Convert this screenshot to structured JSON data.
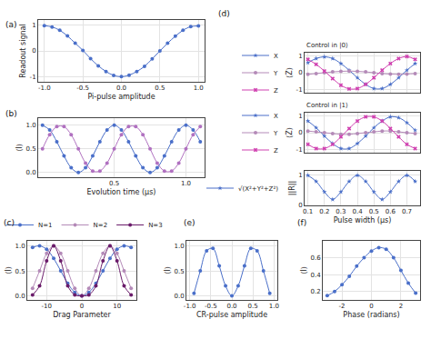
{
  "chart_data": [
    {
      "type": "line",
      "annotations": [
        "(a)"
      ],
      "xlabel": "Pi-pulse amplitude",
      "ylabel": "Readout signal",
      "grid": true,
      "marker": "circle",
      "x": [
        -1.0,
        -0.9,
        -0.8,
        -0.7,
        -0.6,
        -0.5,
        -0.4,
        -0.3,
        -0.2,
        -0.1,
        0.0,
        0.1,
        0.2,
        0.3,
        0.4,
        0.5,
        0.6,
        0.7,
        0.8,
        0.9,
        1.0
      ],
      "series": [
        {
          "color": "#4a6fc9",
          "values": [
            0.98,
            0.93,
            0.8,
            0.58,
            0.3,
            0.02,
            -0.3,
            -0.58,
            -0.8,
            -0.95,
            -1.0,
            -0.94,
            -0.8,
            -0.6,
            -0.31,
            0.0,
            0.3,
            0.57,
            0.8,
            0.94,
            0.97
          ]
        }
      ],
      "xlim": [
        -1.08,
        1.08
      ],
      "xticks": [
        {
          "value": -1,
          "label": "-1.0"
        },
        -0.5,
        {
          "value": 0,
          "label": "0.0"
        },
        0.5,
        {
          "value": 1,
          "label": "1.0"
        }
      ],
      "ylim": [
        -1.2,
        1.2
      ],
      "yticks": [
        -1,
        0,
        1
      ]
    },
    {
      "type": "line",
      "annotations": [
        "(b)"
      ],
      "xlabel": "Evolution time (μs)",
      "ylabel": "⟨I⟩",
      "grid": true,
      "marker": "circle",
      "x": [
        0.0,
        0.05,
        0.1,
        0.15,
        0.2,
        0.25,
        0.3,
        0.35,
        0.4,
        0.45,
        0.5,
        0.55,
        0.6,
        0.65,
        0.7,
        0.75,
        0.8,
        0.85,
        0.9,
        0.95,
        1.0,
        1.05,
        1.1
      ],
      "series": [
        {
          "color": "#4a6fc9",
          "values": [
            1.0,
            0.9,
            0.65,
            0.35,
            0.1,
            0.0,
            0.1,
            0.35,
            0.65,
            0.9,
            1.0,
            0.9,
            0.65,
            0.35,
            0.1,
            0.0,
            0.1,
            0.35,
            0.65,
            0.9,
            1.0,
            0.9,
            0.65
          ]
        },
        {
          "color": "#b070c0",
          "values": [
            0.5,
            0.8,
            0.97,
            0.97,
            0.8,
            0.5,
            0.2,
            0.03,
            0.03,
            0.2,
            0.5,
            0.8,
            0.97,
            0.97,
            0.8,
            0.5,
            0.2,
            0.03,
            0.03,
            0.2,
            0.5,
            0.8,
            0.97
          ]
        }
      ],
      "xlim": [
        -0.03,
        1.13
      ],
      "xticks": [
        0.5,
        {
          "value": 1,
          "label": "1.0"
        }
      ],
      "ylim": [
        -0.1,
        1.15
      ],
      "yticks": [
        {
          "value": 0,
          "label": "0.0"
        },
        0.5,
        {
          "value": 1,
          "label": "1.0"
        }
      ]
    },
    {
      "type": "line",
      "annotations": [
        "(c)"
      ],
      "xlabel": "Drag Parameter",
      "ylabel": "⟨I⟩",
      "grid": true,
      "marker": "circle",
      "legend": "top",
      "x": [
        -14,
        -12,
        -10,
        -8,
        -6,
        -4,
        -2,
        0,
        2,
        4,
        6,
        8,
        10,
        12,
        14
      ],
      "series": [
        {
          "name": "N=1",
          "color": "#4a6fc9",
          "values": [
            0.97,
            1.0,
            0.93,
            0.75,
            0.5,
            0.25,
            0.07,
            0.0,
            0.07,
            0.25,
            0.5,
            0.75,
            0.93,
            1.0,
            0.97
          ]
        },
        {
          "name": "N=2",
          "color": "#b48ab8",
          "values": [
            0.15,
            0.5,
            0.85,
            1.0,
            0.85,
            0.5,
            0.15,
            0.0,
            0.15,
            0.5,
            0.85,
            1.0,
            0.85,
            0.5,
            0.15
          ]
        },
        {
          "name": "N=3",
          "color": "#6a1b6a",
          "values": [
            0.02,
            0.2,
            0.7,
            1.0,
            0.7,
            0.2,
            0.02,
            0.0,
            0.02,
            0.2,
            0.7,
            1.0,
            0.7,
            0.2,
            0.02
          ]
        }
      ],
      "xlim": [
        -15.5,
        15.5
      ],
      "xticks": [
        -10,
        0,
        10
      ],
      "ylim": [
        -0.08,
        1.1
      ],
      "yticks": [
        {
          "value": 0,
          "label": "0.0"
        },
        0.5,
        {
          "value": 1,
          "label": "1.0"
        }
      ]
    },
    {
      "type": "line",
      "annotations": [
        "(d)"
      ],
      "title": "Control in |0⟩",
      "ylabel": "⟨Z⟩",
      "grid": true,
      "legend": "left",
      "tick_labels": "y",
      "x": [
        0.1,
        0.15,
        0.2,
        0.25,
        0.3,
        0.35,
        0.4,
        0.45,
        0.5,
        0.55,
        0.6,
        0.65,
        0.7,
        0.75
      ],
      "series": [
        {
          "name": "X",
          "color": "#4a6fc9",
          "marker": "star",
          "values": [
            0.6,
            0.85,
            0.95,
            0.85,
            0.55,
            0.15,
            -0.3,
            -0.7,
            -0.95,
            -0.95,
            -0.7,
            -0.3,
            0.15,
            0.55
          ]
        },
        {
          "name": "Y",
          "color": "#b48ab8",
          "marker": "circle",
          "values": [
            -0.1,
            -0.05,
            0.0,
            0.05,
            0.08,
            0.1,
            0.08,
            0.05,
            0.0,
            -0.05,
            -0.08,
            -0.1,
            -0.08,
            -0.05
          ]
        },
        {
          "name": "Z",
          "color": "#d040b0",
          "marker": "x",
          "values": [
            0.8,
            0.5,
            0.1,
            -0.35,
            -0.75,
            -0.97,
            -0.95,
            -0.7,
            -0.3,
            0.15,
            0.55,
            0.85,
            0.97,
            0.8
          ]
        }
      ],
      "xlim": [
        0.08,
        0.78
      ],
      "xticks": [
        0.1,
        0.2,
        0.3,
        0.4,
        0.5,
        0.6,
        0.7
      ],
      "ylim": [
        -1.2,
        1.2
      ],
      "yticks": [
        -1,
        0,
        1
      ]
    },
    {
      "type": "line",
      "title": "Control in |1⟩",
      "ylabel": "⟨Z⟩",
      "grid": true,
      "legend": "left",
      "tick_labels": "y",
      "x": [
        0.1,
        0.15,
        0.2,
        0.25,
        0.3,
        0.35,
        0.4,
        0.45,
        0.5,
        0.55,
        0.6,
        0.65,
        0.7,
        0.75
      ],
      "series": [
        {
          "name": "X",
          "color": "#4a6fc9",
          "marker": "star",
          "values": [
            0.7,
            0.3,
            -0.2,
            -0.65,
            -0.95,
            -0.95,
            -0.65,
            -0.2,
            0.3,
            0.7,
            0.95,
            0.9,
            0.6,
            0.15
          ]
        },
        {
          "name": "Y",
          "color": "#b48ab8",
          "marker": "circle",
          "values": [
            0.1,
            0.05,
            0.0,
            -0.05,
            -0.1,
            -0.1,
            -0.05,
            0.0,
            0.05,
            0.1,
            0.1,
            0.05,
            0.0,
            -0.05
          ]
        },
        {
          "name": "Z",
          "color": "#d040b0",
          "marker": "x",
          "values": [
            -0.7,
            -0.95,
            -0.95,
            -0.7,
            -0.25,
            0.25,
            0.7,
            0.95,
            0.95,
            0.7,
            0.25,
            -0.25,
            -0.7,
            -0.95
          ]
        }
      ],
      "xlim": [
        0.08,
        0.78
      ],
      "xticks": [
        0.1,
        0.2,
        0.3,
        0.4,
        0.5,
        0.6,
        0.7
      ],
      "ylim": [
        -1.2,
        1.2
      ],
      "yticks": [
        -1,
        0,
        1
      ]
    },
    {
      "type": "line",
      "xlabel": "Pulse width (μs)",
      "ylabel": "||R||",
      "grid": true,
      "legend": "left",
      "x": [
        0.1,
        0.15,
        0.2,
        0.25,
        0.3,
        0.35,
        0.4,
        0.45,
        0.5,
        0.55,
        0.6,
        0.65,
        0.7,
        0.75
      ],
      "series": [
        {
          "name": "√(X²+Y²+Z²)",
          "color": "#4a6fc9",
          "marker": "star",
          "values": [
            1.0,
            0.8,
            0.45,
            0.2,
            0.45,
            0.8,
            1.0,
            0.8,
            0.45,
            0.2,
            0.45,
            0.8,
            1.0,
            0.8
          ]
        }
      ],
      "xlim": [
        0.08,
        0.78
      ],
      "xticks": [
        0.1,
        0.2,
        0.3,
        0.4,
        0.5,
        0.6,
        0.7
      ],
      "ylim": [
        0,
        1.15
      ],
      "yticks": [
        0,
        1
      ]
    },
    {
      "type": "line",
      "annotations": [
        "(e)"
      ],
      "xlabel": "CR-pulse amplitude",
      "ylabel": "⟨I⟩",
      "grid": true,
      "marker": "circle",
      "x": [
        -0.9,
        -0.75,
        -0.6,
        -0.45,
        -0.3,
        -0.15,
        0.0,
        0.15,
        0.3,
        0.45,
        0.6,
        0.75,
        0.9
      ],
      "series": [
        {
          "color": "#4a6fc9",
          "values": [
            0.05,
            0.5,
            0.9,
            0.95,
            0.6,
            0.2,
            0.0,
            0.2,
            0.6,
            0.95,
            0.9,
            0.5,
            0.05
          ]
        }
      ],
      "xlim": [
        -1.08,
        1.08
      ],
      "xticks": [
        {
          "value": -1,
          "label": "-1.0"
        },
        -0.5,
        {
          "value": 0,
          "label": "0.0"
        },
        0.5,
        {
          "value": 1,
          "label": "1.0"
        }
      ],
      "ylim": [
        -0.08,
        1.1
      ],
      "yticks": [
        {
          "value": 0,
          "label": "0.0"
        },
        0.5,
        {
          "value": 1,
          "label": "1.0"
        }
      ]
    },
    {
      "type": "line",
      "annotations": [
        "(f)"
      ],
      "xlabel": "Phase (radians)",
      "ylabel": "⟨I⟩",
      "grid": true,
      "marker": "circle",
      "x": [
        -3.0,
        -2.5,
        -2.0,
        -1.5,
        -1.0,
        -0.5,
        0.0,
        0.5,
        1.0,
        1.5,
        2.0,
        2.5,
        3.0
      ],
      "series": [
        {
          "color": "#4a6fc9",
          "values": [
            0.15,
            0.2,
            0.28,
            0.38,
            0.5,
            0.6,
            0.68,
            0.72,
            0.7,
            0.6,
            0.45,
            0.3,
            0.18
          ]
        }
      ],
      "xlim": [
        -3.3,
        3.3
      ],
      "xticks": [
        -2,
        0,
        2
      ],
      "ylim": [
        0.1,
        0.8
      ],
      "yticks": [
        0.2,
        0.4,
        0.6
      ]
    }
  ]
}
